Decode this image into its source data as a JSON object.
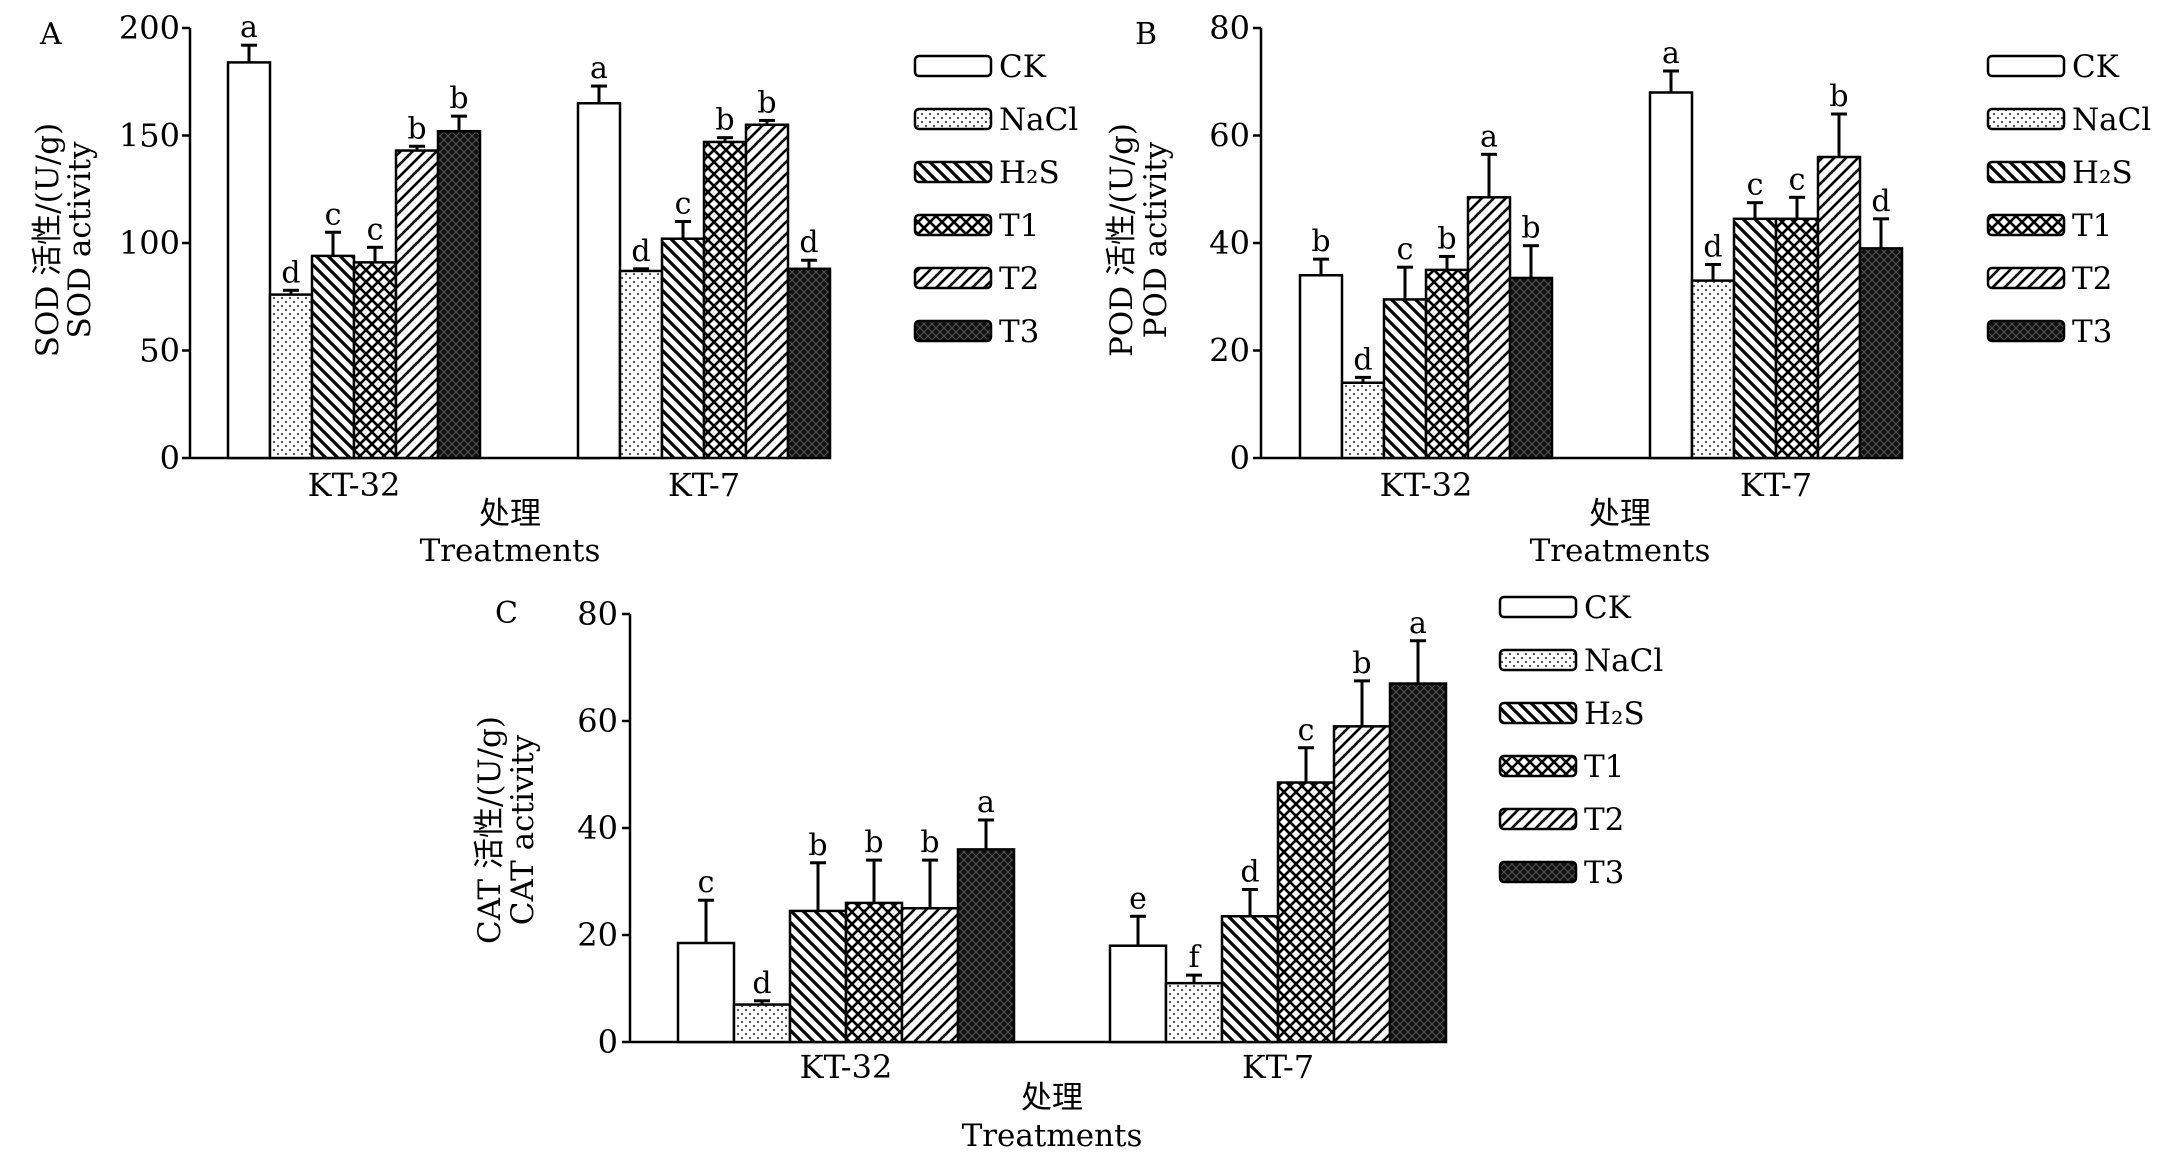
{
  "figure": {
    "treatments": [
      "CK",
      "NaCl",
      "H2S",
      "T1",
      "T2",
      "T3"
    ]
  },
  "legend": {
    "entries": [
      {
        "label": "CK",
        "pattern": "white"
      },
      {
        "label": "NaCl",
        "pattern": "dots"
      },
      {
        "label": "H₂S",
        "pattern": "back-diagonal"
      },
      {
        "label": "T1",
        "pattern": "crosshatch"
      },
      {
        "label": "T2",
        "pattern": "forward-diagonal"
      },
      {
        "label": "T3",
        "pattern": "dark"
      }
    ]
  },
  "chart_data": [
    {
      "type": "bar",
      "panel": "A",
      "title": "",
      "xlabel": "处理\nTreatments",
      "ylabel": "SOD 活性/(U/g)\nSOD activity",
      "ylim": [
        0,
        200
      ],
      "yticks": [
        0,
        50,
        100,
        150,
        200
      ],
      "categories": [
        "KT-32",
        "KT-7"
      ],
      "series": [
        {
          "name": "CK",
          "values": [
            184,
            165
          ],
          "errors": [
            8,
            8
          ],
          "letters": [
            "a",
            "a"
          ]
        },
        {
          "name": "NaCl",
          "values": [
            76,
            87
          ],
          "errors": [
            2,
            1
          ],
          "letters": [
            "d",
            "d"
          ]
        },
        {
          "name": "H2S",
          "values": [
            94,
            102
          ],
          "errors": [
            11,
            8
          ],
          "letters": [
            "c",
            "c"
          ]
        },
        {
          "name": "T1",
          "values": [
            91,
            147
          ],
          "errors": [
            7,
            2
          ],
          "letters": [
            "c",
            "b"
          ]
        },
        {
          "name": "T2",
          "values": [
            143,
            155
          ],
          "errors": [
            2,
            2
          ],
          "letters": [
            "b",
            "b"
          ]
        },
        {
          "name": "T3",
          "values": [
            152,
            88
          ],
          "errors": [
            7,
            4
          ],
          "letters": [
            "b",
            "d"
          ]
        }
      ]
    },
    {
      "type": "bar",
      "panel": "B",
      "title": "",
      "xlabel": "处理\nTreatments",
      "ylabel": "POD 活性/(U/g)\nPOD activity",
      "ylim": [
        0,
        80
      ],
      "yticks": [
        0,
        20,
        40,
        60,
        80
      ],
      "categories": [
        "KT-32",
        "KT-7"
      ],
      "series": [
        {
          "name": "CK",
          "values": [
            34,
            68
          ],
          "errors": [
            3,
            4
          ],
          "letters": [
            "b",
            "a"
          ]
        },
        {
          "name": "NaCl",
          "values": [
            14,
            33
          ],
          "errors": [
            1,
            3
          ],
          "letters": [
            "d",
            "d"
          ]
        },
        {
          "name": "H2S",
          "values": [
            29.5,
            44.5
          ],
          "errors": [
            6,
            3
          ],
          "letters": [
            "c",
            "c"
          ]
        },
        {
          "name": "T1",
          "values": [
            35,
            44.5
          ],
          "errors": [
            2.5,
            4
          ],
          "letters": [
            "b",
            "c"
          ]
        },
        {
          "name": "T2",
          "values": [
            48.5,
            56
          ],
          "errors": [
            8,
            8
          ],
          "letters": [
            "a",
            "b"
          ]
        },
        {
          "name": "T3",
          "values": [
            33.5,
            39
          ],
          "errors": [
            6,
            5.5
          ],
          "letters": [
            "b",
            "d"
          ]
        }
      ]
    },
    {
      "type": "bar",
      "panel": "C",
      "title": "",
      "xlabel": "处理\nTreatments",
      "ylabel": "CAT 活性/(U/g)\nCAT activity",
      "ylim": [
        0,
        80
      ],
      "yticks": [
        0,
        20,
        40,
        60,
        80
      ],
      "categories": [
        "KT-32",
        "KT-7"
      ],
      "series": [
        {
          "name": "CK",
          "values": [
            18.5,
            18
          ],
          "errors": [
            8,
            5.5
          ],
          "letters": [
            "c",
            "e"
          ]
        },
        {
          "name": "NaCl",
          "values": [
            7,
            11
          ],
          "errors": [
            0.7,
            1.5
          ],
          "letters": [
            "d",
            "f"
          ]
        },
        {
          "name": "H2S",
          "values": [
            24.5,
            23.5
          ],
          "errors": [
            9,
            5
          ],
          "letters": [
            "b",
            "d"
          ]
        },
        {
          "name": "T1",
          "values": [
            26,
            48.5
          ],
          "errors": [
            8,
            6.5
          ],
          "letters": [
            "b",
            "c"
          ]
        },
        {
          "name": "T2",
          "values": [
            25,
            59
          ],
          "errors": [
            9,
            8.5
          ],
          "letters": [
            "b",
            "b"
          ]
        },
        {
          "name": "T3",
          "values": [
            36,
            67
          ],
          "errors": [
            5.5,
            8
          ],
          "letters": [
            "a",
            "a"
          ]
        }
      ]
    }
  ]
}
